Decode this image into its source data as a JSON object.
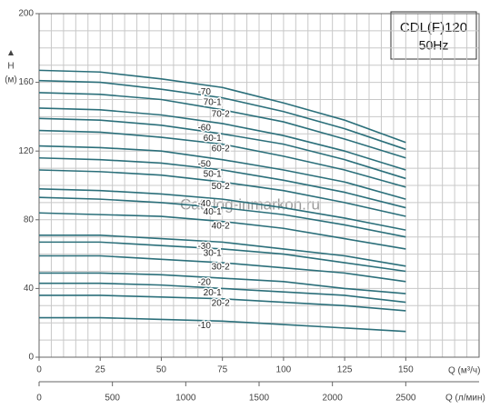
{
  "chart_data": {
    "type": "line",
    "title": "CDL(F)120",
    "subtitle": "50Hz",
    "y_label": "H",
    "y_unit": "(м)",
    "x_label": "Q (м³/ч)",
    "x2_label": "Q (л/мин)",
    "watermark": "Catalog-inmarkon.ru",
    "x": [
      0,
      25,
      50,
      75,
      100,
      125,
      150
    ],
    "xlim": [
      0,
      180
    ],
    "xticks": [
      0,
      25,
      50,
      75,
      100,
      125,
      150
    ],
    "x2lim": [
      0,
      3000
    ],
    "x2ticks": [
      0,
      500,
      1000,
      1500,
      2000,
      2500
    ],
    "ylim": [
      0,
      200
    ],
    "yticks": [
      0,
      40,
      80,
      120,
      160,
      200
    ],
    "xgrid": [
      0,
      5,
      10,
      15,
      20,
      25,
      30,
      35,
      40,
      45,
      50,
      55,
      60,
      65,
      70,
      75,
      80,
      85,
      90,
      95,
      100,
      105,
      110,
      115,
      120,
      125,
      130,
      135,
      140,
      145,
      150,
      155,
      160,
      165,
      170,
      175,
      180
    ],
    "ygrid": [
      0,
      10,
      20,
      30,
      40,
      50,
      60,
      70,
      80,
      90,
      100,
      110,
      120,
      130,
      140,
      150,
      160,
      170,
      180,
      190,
      200
    ],
    "grid": true,
    "series": [
      {
        "name": "-70",
        "color": "#2b6f7a",
        "values": [
          167,
          166,
          162,
          157,
          148,
          138,
          125
        ]
      },
      {
        "name": "70-1",
        "color": "#2b6f7a",
        "values": [
          161,
          160,
          156,
          151,
          143,
          133,
          121
        ]
      },
      {
        "name": "70-2",
        "color": "#2b6f7a",
        "values": [
          154,
          153,
          150,
          144,
          137,
          127,
          116
        ]
      },
      {
        "name": "-60",
        "color": "#2b6f7a",
        "values": [
          145,
          144,
          141,
          136,
          129,
          120,
          109
        ]
      },
      {
        "name": "60-1",
        "color": "#2b6f7a",
        "values": [
          139,
          138,
          135,
          130,
          124,
          115,
          104
        ]
      },
      {
        "name": "60-2",
        "color": "#2b6f7a",
        "values": [
          132,
          131,
          128,
          124,
          117,
          109,
          99
        ]
      },
      {
        "name": "-50",
        "color": "#2b6f7a",
        "values": [
          123,
          122,
          120,
          115,
          109,
          102,
          92
        ]
      },
      {
        "name": "50-1",
        "color": "#2b6f7a",
        "values": [
          116,
          115,
          113,
          109,
          103,
          96,
          87
        ]
      },
      {
        "name": "50-2",
        "color": "#2b6f7a",
        "values": [
          109,
          108,
          106,
          102,
          97,
          90,
          82
        ]
      },
      {
        "name": "-40",
        "color": "#2b6f7a",
        "values": [
          98,
          97,
          95,
          92,
          87,
          81,
          74
        ]
      },
      {
        "name": "40-1",
        "color": "#2b6f7a",
        "values": [
          93,
          92,
          90,
          87,
          83,
          77,
          70
        ]
      },
      {
        "name": "40-2",
        "color": "#2b6f7a",
        "values": [
          84,
          83,
          82,
          79,
          75,
          69,
          63
        ]
      },
      {
        "name": "-30",
        "color": "#2b6f7a",
        "values": [
          71,
          71,
          69,
          67,
          63,
          59,
          53
        ]
      },
      {
        "name": "30-1",
        "color": "#2b6f7a",
        "values": [
          67,
          67,
          65,
          63,
          60,
          55,
          50
        ]
      },
      {
        "name": "30-2",
        "color": "#2b6f7a",
        "values": [
          59,
          59,
          57,
          55,
          52,
          49,
          44
        ]
      },
      {
        "name": "-20",
        "color": "#2b6f7a",
        "values": [
          49,
          49,
          48,
          46,
          44,
          40,
          37
        ]
      },
      {
        "name": "20-1",
        "color": "#2b6f7a",
        "values": [
          43,
          43,
          42,
          40,
          38,
          36,
          32
        ]
      },
      {
        "name": "20-2",
        "color": "#2b6f7a",
        "values": [
          36,
          36,
          35,
          34,
          32,
          30,
          27
        ]
      },
      {
        "name": "-10",
        "color": "#2b6f7a",
        "values": [
          23,
          23,
          22,
          21,
          19,
          17,
          15
        ]
      }
    ]
  }
}
